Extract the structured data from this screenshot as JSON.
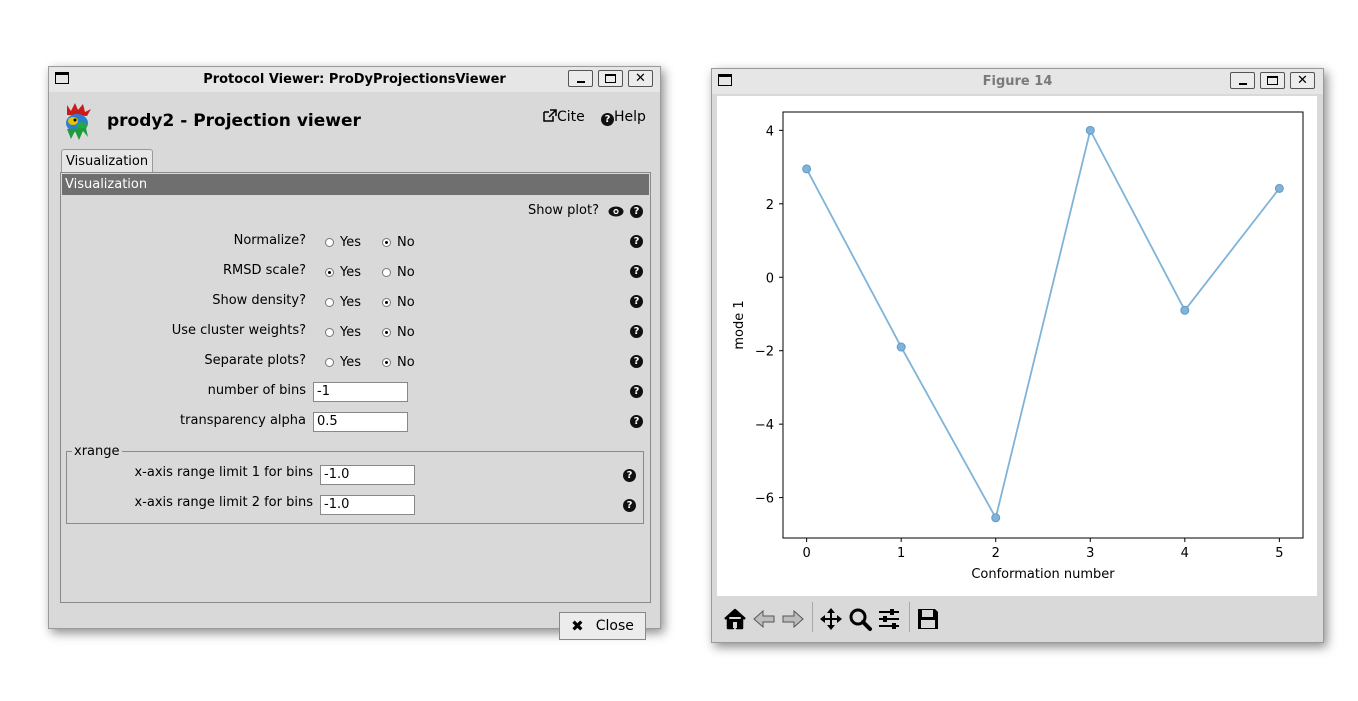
{
  "protocol_viewer": {
    "window_title": "Protocol Viewer: ProDyProjectionsViewer",
    "app_title": "prody2 - Projection viewer",
    "cite_label": "Cite",
    "help_label": "Help",
    "tab_label": "Visualization",
    "section_title": "Visualization",
    "show_plot_label": "Show plot?",
    "yes_label": "Yes",
    "no_label": "No",
    "params": [
      {
        "label": "Normalize?",
        "selected": "No"
      },
      {
        "label": "RMSD scale?",
        "selected": "Yes"
      },
      {
        "label": "Show density?",
        "selected": "No"
      },
      {
        "label": "Use cluster weights?",
        "selected": "No"
      },
      {
        "label": "Separate plots?",
        "selected": "No"
      }
    ],
    "bins_label": "number of bins",
    "bins_value": "-1",
    "alpha_label": "transparency alpha",
    "alpha_value": "0.5",
    "xrange_legend": "xrange",
    "xrange_limit1_label": "x-axis range limit 1 for bins",
    "xrange_limit1_value": "-1.0",
    "xrange_limit2_label": "x-axis range limit 2 for bins",
    "xrange_limit2_value": "-1.0",
    "close_label": "Close"
  },
  "figure_window": {
    "window_title": "Figure 14",
    "toolbar_icons": [
      "home-icon",
      "back-icon",
      "forward-icon",
      "pan-icon",
      "zoom-icon",
      "configure-subplots-icon",
      "save-icon"
    ]
  },
  "chart_data": {
    "type": "line",
    "title": "",
    "xlabel": "Conformation number",
    "ylabel": "mode 1",
    "x": [
      0,
      1,
      2,
      3,
      4,
      5
    ],
    "series": [
      {
        "values": [
          2.95,
          -1.9,
          -6.55,
          4.0,
          -0.9,
          2.42
        ],
        "color": "#7fb3d8"
      }
    ],
    "xlim": [
      -0.25,
      5.25
    ],
    "ylim": [
      -7.1,
      4.5
    ],
    "xticks": [
      0,
      1,
      2,
      3,
      4,
      5
    ],
    "yticks": [
      -6,
      -4,
      -2,
      0,
      2,
      4
    ],
    "grid": false,
    "markers": true
  }
}
